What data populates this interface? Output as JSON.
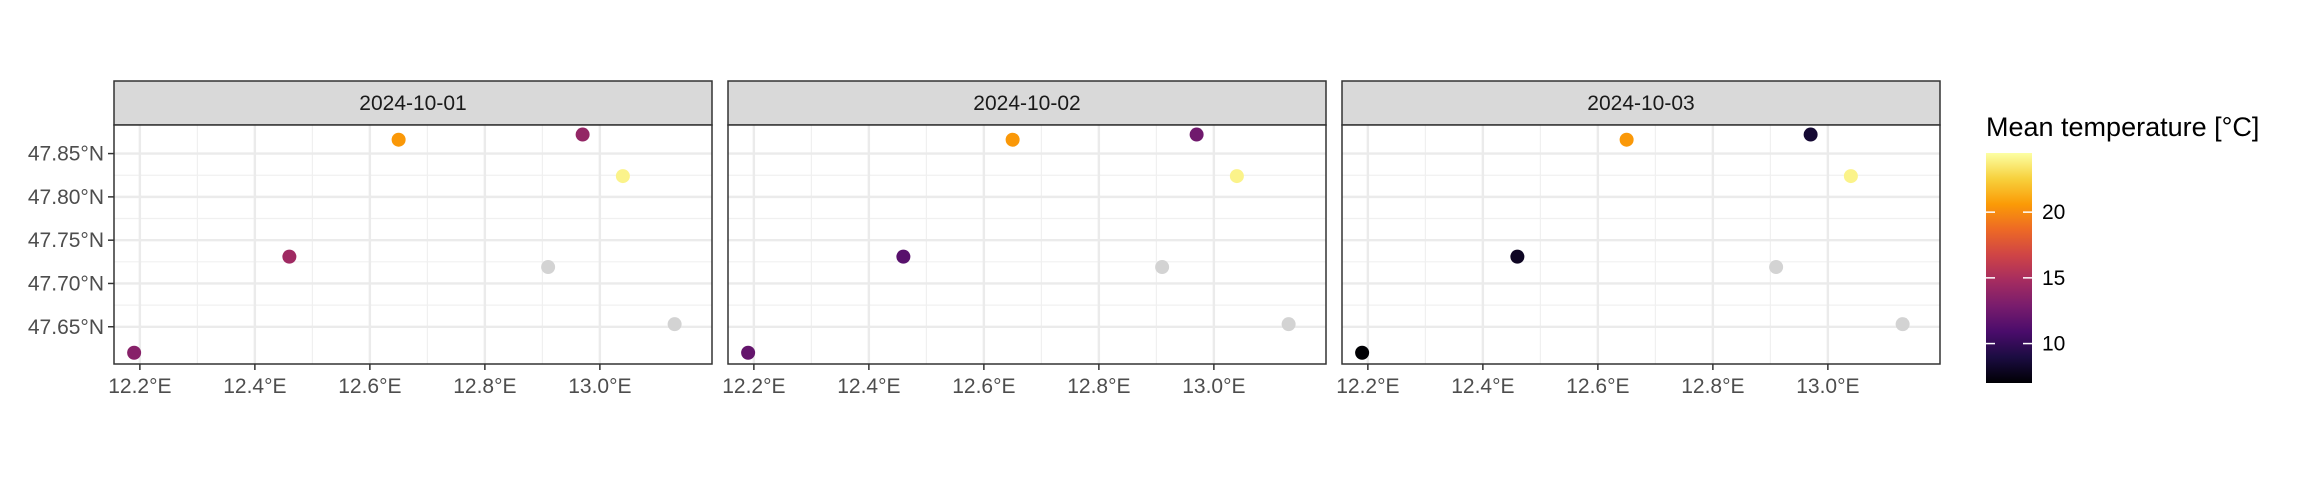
{
  "chart_data": {
    "type": "scatter",
    "facet_by": "date",
    "facets": [
      "2024-10-01",
      "2024-10-02",
      "2024-10-03"
    ],
    "x_axis": {
      "ticks": [
        12.2,
        12.4,
        12.6,
        12.8,
        13.0
      ],
      "tick_labels": [
        "12.2°E",
        "12.4°E",
        "12.6°E",
        "12.8°E",
        "13.0°E"
      ],
      "range": [
        12.155,
        13.195
      ]
    },
    "y_axis": {
      "ticks": [
        47.65,
        47.7,
        47.75,
        47.8,
        47.85
      ],
      "tick_labels": [
        "47.65°N",
        "47.70°N",
        "47.75°N",
        "47.80°N",
        "47.85°N"
      ],
      "range": [
        47.607,
        47.883
      ]
    },
    "grid": true,
    "missing_color": "#d3d3d3",
    "stations": [
      {
        "lon": 12.19,
        "lat": 47.62
      },
      {
        "lon": 12.46,
        "lat": 47.731
      },
      {
        "lon": 12.65,
        "lat": 47.866
      },
      {
        "lon": 12.97,
        "lat": 47.872
      },
      {
        "lon": 13.04,
        "lat": 47.824
      },
      {
        "lon": 12.91,
        "lat": 47.719
      },
      {
        "lon": 13.13,
        "lat": 47.653
      }
    ],
    "values": [
      [
        13.5,
        14.5,
        20.5,
        14.0,
        24.0,
        null,
        null
      ],
      [
        12.0,
        11.5,
        20.5,
        12.5,
        24.0,
        null,
        null
      ],
      [
        7.0,
        8.0,
        20.5,
        8.5,
        24.0,
        null,
        null
      ]
    ],
    "colorbar": {
      "title": "Mean temperature [°C]",
      "ticks": [
        10,
        15,
        20
      ],
      "tick_labels": [
        "10",
        "15",
        "20"
      ],
      "range": [
        7.0,
        24.5
      ],
      "palette": "inferno",
      "stops": [
        "#000004",
        "#1b0c41",
        "#4a0c6b",
        "#781c6d",
        "#a52c60",
        "#cf4446",
        "#ed6925",
        "#fb9b06",
        "#f7d13d",
        "#fcffa4"
      ]
    }
  }
}
